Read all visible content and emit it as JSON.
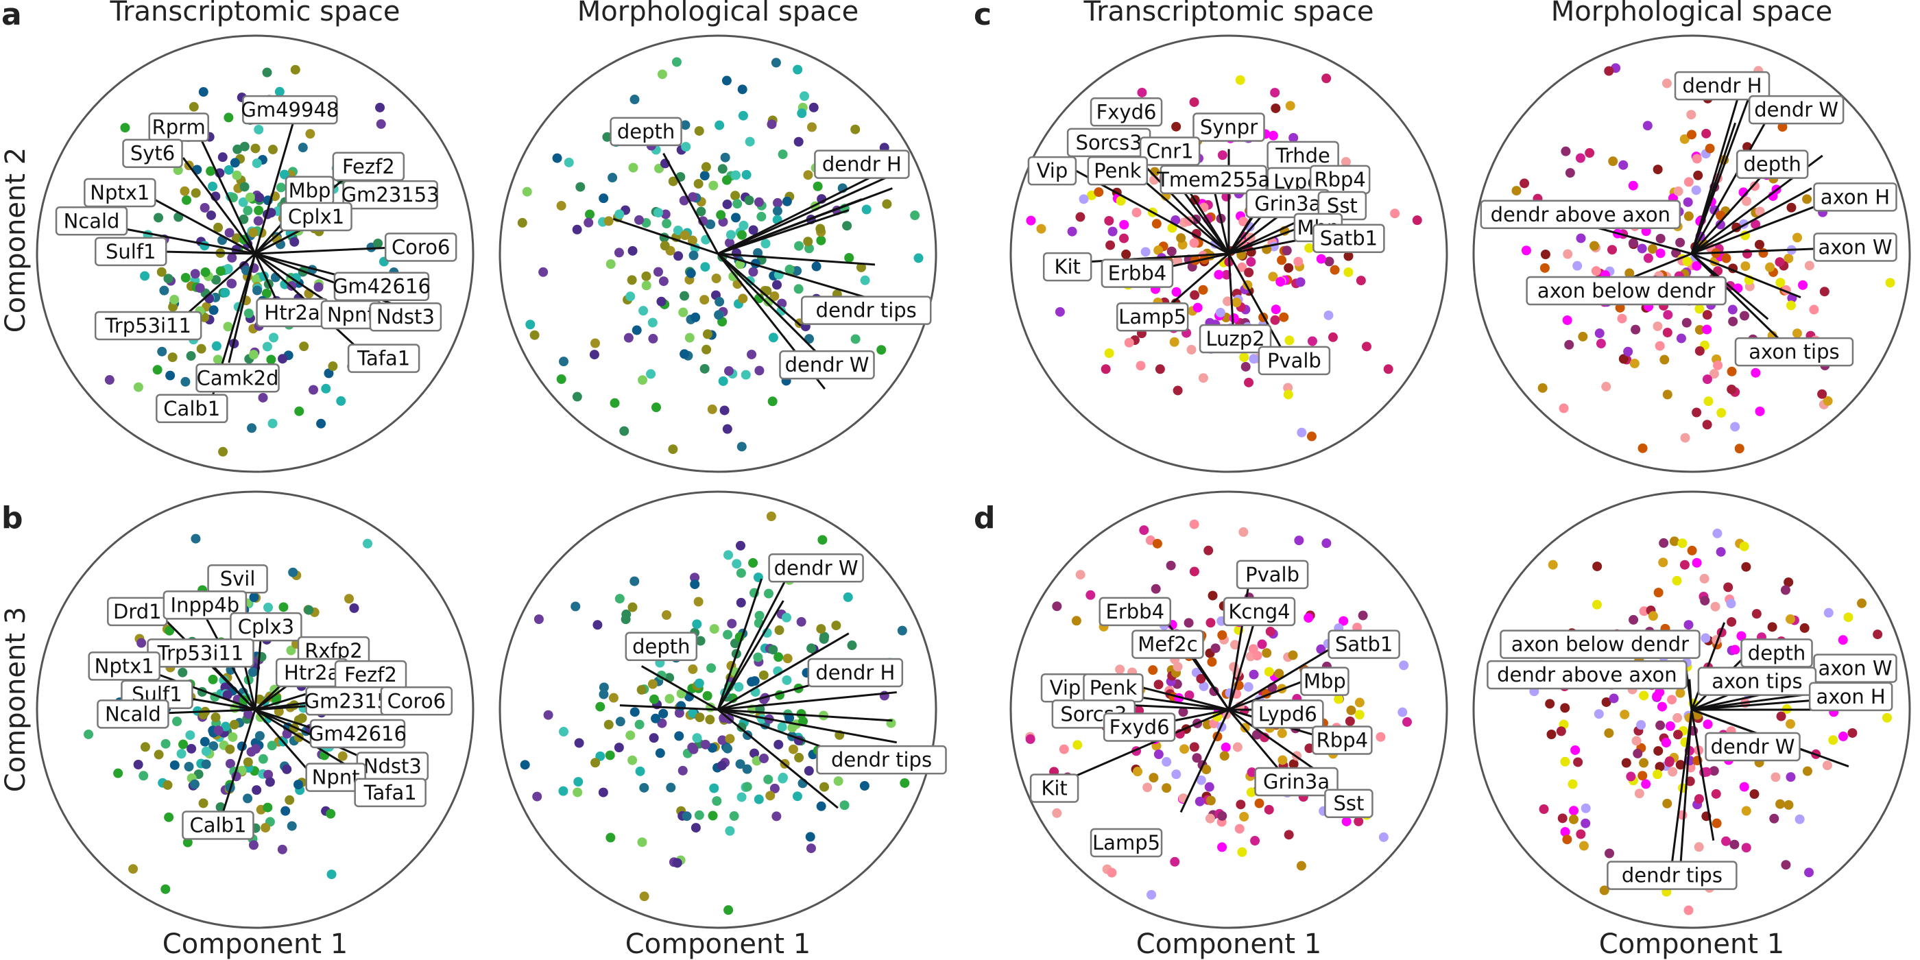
{
  "figure": {
    "panel_letters": [
      "a",
      "b",
      "c",
      "d"
    ],
    "column_titles": [
      "Transcriptomic space",
      "Morphological space",
      "Transcriptomic space",
      "Morphological space"
    ],
    "xlabel": "Component 1",
    "row_ylabels": [
      "Component 2",
      "Component 3"
    ],
    "palettes": {
      "green_blue": [
        "#2e8b57",
        "#20b2aa",
        "#3cb371",
        "#40c4b4",
        "#1e6e8c",
        "#0b5b8a",
        "#4b2d8a",
        "#6a3d9a",
        "#8a8a1a",
        "#a09020",
        "#7fcf5f",
        "#27a22a"
      ],
      "magenta_red": [
        "#c81e6a",
        "#a51f3a",
        "#8b1a1a",
        "#b8860b",
        "#d4a017",
        "#ff00ff",
        "#d02090",
        "#9932cc",
        "#ff8c9a",
        "#f4a0a0",
        "#b0a0ff",
        "#e6e600",
        "#cc5500",
        "#8e2a6e"
      ]
    }
  },
  "chart_data": [
    {
      "type": "scatter",
      "panel": "a",
      "space": "Transcriptomic space",
      "xlabel": "Component 1",
      "ylabel": "Component 2",
      "palette": "green_blue",
      "spread": [
        0.55,
        0.75
      ],
      "seed": 11,
      "loadings": [
        {
          "label": "Gm49948",
          "dx": 0.18,
          "dy": 0.62,
          "lx": 0.16,
          "ly": 0.66
        },
        {
          "label": "Rprm",
          "dx": -0.25,
          "dy": 0.53,
          "lx": -0.35,
          "ly": 0.58
        },
        {
          "label": "Syt6",
          "dx": -0.33,
          "dy": 0.44,
          "lx": -0.47,
          "ly": 0.46
        },
        {
          "label": "Fezf2",
          "dx": 0.44,
          "dy": 0.37,
          "lx": 0.52,
          "ly": 0.4
        },
        {
          "label": "Mbp",
          "dx": 0.25,
          "dy": 0.28,
          "lx": 0.25,
          "ly": 0.29
        },
        {
          "label": "Gm23153",
          "dx": 0.52,
          "dy": 0.27,
          "lx": 0.62,
          "ly": 0.27
        },
        {
          "label": "Nptx1",
          "dx": -0.52,
          "dy": 0.28,
          "lx": -0.62,
          "ly": 0.28
        },
        {
          "label": "Cplx1",
          "dx": 0.27,
          "dy": 0.14,
          "lx": 0.28,
          "ly": 0.17
        },
        {
          "label": "Ncald",
          "dx": -0.63,
          "dy": 0.12,
          "lx": -0.75,
          "ly": 0.15
        },
        {
          "label": "Coro6",
          "dx": 0.67,
          "dy": 0.03,
          "lx": 0.76,
          "ly": 0.03
        },
        {
          "label": "Sulf1",
          "dx": -0.44,
          "dy": 0.01,
          "lx": -0.57,
          "ly": 0.01
        },
        {
          "label": "Gm42616",
          "dx": 0.5,
          "dy": -0.13,
          "lx": 0.58,
          "ly": -0.15
        },
        {
          "label": "Htr2a",
          "dx": 0.11,
          "dy": -0.24,
          "lx": 0.17,
          "ly": -0.27
        },
        {
          "label": "Npnt",
          "dx": 0.39,
          "dy": -0.26,
          "lx": 0.44,
          "ly": -0.28
        },
        {
          "label": "Ndst3",
          "dx": 0.63,
          "dy": -0.23,
          "lx": 0.69,
          "ly": -0.29
        },
        {
          "label": "Trp53i11",
          "dx": -0.34,
          "dy": -0.3,
          "lx": -0.49,
          "ly": -0.33
        },
        {
          "label": "Tafa1",
          "dx": 0.5,
          "dy": -0.46,
          "lx": 0.59,
          "ly": -0.48
        },
        {
          "label": "Camk2d",
          "dx": -0.12,
          "dy": -0.5,
          "lx": -0.08,
          "ly": -0.57
        },
        {
          "label": "Calb1",
          "dx": -0.2,
          "dy": -0.67,
          "lx": -0.29,
          "ly": -0.71
        }
      ]
    },
    {
      "type": "scatter",
      "panel": "a",
      "space": "Morphological space",
      "xlabel": "Component 1",
      "ylabel": "Component 2",
      "palette": "green_blue",
      "spread": [
        0.75,
        0.8
      ],
      "seed": 12,
      "loadings": [
        {
          "label": "depth",
          "dx": -0.25,
          "dy": 0.46,
          "lx": -0.33,
          "ly": 0.56
        },
        {
          "label": "dendr H",
          "dx": 0.84,
          "dy": 0.38,
          "lx": 0.66,
          "ly": 0.41
        },
        {
          "label": "dendr tips",
          "dx": 0.78,
          "dy": -0.23,
          "lx": 0.68,
          "ly": -0.26
        },
        {
          "label": "dendr W",
          "dx": 0.49,
          "dy": -0.62,
          "lx": 0.5,
          "ly": -0.51
        },
        {
          "label": "",
          "dx": 0.8,
          "dy": 0.3
        },
        {
          "label": "",
          "dx": 0.7,
          "dy": 0.35
        },
        {
          "label": "",
          "dx": 0.6,
          "dy": 0.2
        },
        {
          "label": "",
          "dx": 0.72,
          "dy": -0.05
        },
        {
          "label": "",
          "dx": 0.45,
          "dy": -0.45
        },
        {
          "label": "",
          "dx": 0.38,
          "dy": -0.33
        },
        {
          "label": "",
          "dx": -0.48,
          "dy": 0.16
        },
        {
          "label": "",
          "dx": 0.66,
          "dy": 0.25
        }
      ]
    },
    {
      "type": "scatter",
      "panel": "c",
      "space": "Transcriptomic space",
      "xlabel": "Component 1",
      "ylabel": "Component 2",
      "palette": "magenta_red",
      "spread": [
        0.75,
        0.7
      ],
      "seed": 13,
      "loadings": [
        {
          "label": "Fxyd6",
          "dx": -0.4,
          "dy": 0.55,
          "lx": -0.47,
          "ly": 0.65
        },
        {
          "label": "Synpr",
          "dx": 0.0,
          "dy": 0.48,
          "lx": 0.0,
          "ly": 0.58
        },
        {
          "label": "Sorcs3",
          "dx": -0.43,
          "dy": 0.45,
          "lx": -0.55,
          "ly": 0.51
        },
        {
          "label": "Cnr1",
          "dx": -0.26,
          "dy": 0.41,
          "lx": -0.27,
          "ly": 0.47
        },
        {
          "label": "Trhde",
          "dx": 0.26,
          "dy": 0.42,
          "lx": 0.34,
          "ly": 0.45
        },
        {
          "label": "Lypd6",
          "dx": 0.22,
          "dy": 0.34,
          "lx": 0.34,
          "ly": 0.33
        },
        {
          "label": "Rbp4",
          "dx": 0.45,
          "dy": 0.34,
          "lx": 0.51,
          "ly": 0.34
        },
        {
          "label": "Vip",
          "dx": -0.7,
          "dy": 0.38,
          "lx": -0.81,
          "ly": 0.38
        },
        {
          "label": "Penk",
          "dx": -0.43,
          "dy": 0.37,
          "lx": -0.51,
          "ly": 0.38
        },
        {
          "label": "Tmem255a",
          "dx": -0.08,
          "dy": 0.35,
          "lx": -0.07,
          "ly": 0.34
        },
        {
          "label": "Grin3a",
          "dx": 0.2,
          "dy": 0.23,
          "lx": 0.27,
          "ly": 0.23
        },
        {
          "label": "Sst",
          "dx": 0.47,
          "dy": 0.22,
          "lx": 0.52,
          "ly": 0.22
        },
        {
          "label": "Mbp",
          "dx": 0.3,
          "dy": 0.11,
          "lx": 0.41,
          "ly": 0.12
        },
        {
          "label": "Satb1",
          "dx": 0.51,
          "dy": 0.1,
          "lx": 0.55,
          "ly": 0.07
        },
        {
          "label": "Kit",
          "dx": -0.7,
          "dy": -0.04,
          "lx": -0.74,
          "ly": -0.06
        },
        {
          "label": "Erbb4",
          "dx": -0.41,
          "dy": -0.09,
          "lx": -0.42,
          "ly": -0.09
        },
        {
          "label": "Lamp5",
          "dx": -0.31,
          "dy": -0.27,
          "lx": -0.35,
          "ly": -0.29
        },
        {
          "label": "Luzp2",
          "dx": 0.02,
          "dy": -0.34,
          "lx": 0.03,
          "ly": -0.39
        },
        {
          "label": "Pvalb",
          "dx": 0.25,
          "dy": -0.45,
          "lx": 0.3,
          "ly": -0.49
        }
      ]
    },
    {
      "type": "scatter",
      "panel": "c",
      "space": "Morphological space",
      "xlabel": "Component 1",
      "ylabel": "Component 2",
      "palette": "magenta_red",
      "spread": [
        0.8,
        0.8
      ],
      "seed": 14,
      "loadings": [
        {
          "label": "dendr H",
          "dx": 0.24,
          "dy": 0.81,
          "lx": 0.14,
          "ly": 0.77
        },
        {
          "label": "dendr W",
          "dx": 0.37,
          "dy": 0.66,
          "lx": 0.48,
          "ly": 0.66
        },
        {
          "label": "depth",
          "dx": 0.37,
          "dy": 0.41,
          "lx": 0.37,
          "ly": 0.41
        },
        {
          "label": "axon H",
          "dx": 0.68,
          "dy": 0.26,
          "lx": 0.75,
          "ly": 0.26
        },
        {
          "label": "dendr above axon",
          "dx": -0.51,
          "dy": 0.14,
          "lx": -0.51,
          "ly": 0.18
        },
        {
          "label": "axon W",
          "dx": 0.75,
          "dy": 0.03,
          "lx": 0.75,
          "ly": 0.03
        },
        {
          "label": "axon below dendr",
          "dx": -0.3,
          "dy": -0.12,
          "lx": -0.3,
          "ly": -0.17
        },
        {
          "label": "axon tips",
          "dx": 0.42,
          "dy": -0.41,
          "lx": 0.47,
          "ly": -0.45
        },
        {
          "label": "",
          "dx": 0.26,
          "dy": 0.71
        },
        {
          "label": "",
          "dx": 0.6,
          "dy": 0.45
        },
        {
          "label": "",
          "dx": 0.55,
          "dy": 0.3
        },
        {
          "label": "",
          "dx": 0.5,
          "dy": -0.2
        },
        {
          "label": "",
          "dx": 0.35,
          "dy": -0.3
        },
        {
          "label": "",
          "dx": 0.2,
          "dy": 0.6
        }
      ]
    },
    {
      "type": "scatter",
      "panel": "b",
      "space": "Transcriptomic space",
      "xlabel": "Component 1",
      "ylabel": "Component 3",
      "palette": "green_blue",
      "spread": [
        0.55,
        0.7
      ],
      "seed": 21,
      "loadings": [
        {
          "label": "Svil",
          "dx": -0.12,
          "dy": 0.52,
          "lx": -0.08,
          "ly": 0.6
        },
        {
          "label": "Drd1",
          "dx": -0.43,
          "dy": 0.43,
          "lx": -0.54,
          "ly": 0.45
        },
        {
          "label": "Inpp4b",
          "dx": -0.24,
          "dy": 0.45,
          "lx": -0.23,
          "ly": 0.48
        },
        {
          "label": "Cplx3",
          "dx": 0.03,
          "dy": 0.38,
          "lx": 0.05,
          "ly": 0.38
        },
        {
          "label": "Trp53i11",
          "dx": -0.27,
          "dy": 0.28,
          "lx": -0.25,
          "ly": 0.26
        },
        {
          "label": "Rxfp2",
          "dx": 0.36,
          "dy": 0.27,
          "lx": 0.36,
          "ly": 0.27
        },
        {
          "label": "Nptx1",
          "dx": -0.55,
          "dy": 0.2,
          "lx": -0.6,
          "ly": 0.2
        },
        {
          "label": "Htr2a",
          "dx": 0.18,
          "dy": 0.17,
          "lx": 0.26,
          "ly": 0.17
        },
        {
          "label": "Fezf2",
          "dx": 0.52,
          "dy": 0.16,
          "lx": 0.53,
          "ly": 0.16
        },
        {
          "label": "Sulf1",
          "dx": -0.41,
          "dy": 0.07,
          "lx": -0.45,
          "ly": 0.07
        },
        {
          "label": "Gm23153",
          "dx": 0.3,
          "dy": 0.04,
          "lx": 0.45,
          "ly": 0.04
        },
        {
          "label": "Coro6",
          "dx": 0.72,
          "dy": 0.05,
          "lx": 0.74,
          "ly": 0.04
        },
        {
          "label": "Ncald",
          "dx": -0.54,
          "dy": -0.02,
          "lx": -0.56,
          "ly": -0.02
        },
        {
          "label": "Gm42616",
          "dx": 0.34,
          "dy": -0.11,
          "lx": 0.47,
          "ly": -0.11
        },
        {
          "label": "Ndst3",
          "dx": 0.56,
          "dy": -0.25,
          "lx": 0.63,
          "ly": -0.26
        },
        {
          "label": "Npnt",
          "dx": 0.28,
          "dy": -0.32,
          "lx": 0.37,
          "ly": -0.31
        },
        {
          "label": "Tafa1",
          "dx": 0.56,
          "dy": -0.34,
          "lx": 0.62,
          "ly": -0.38
        },
        {
          "label": "Calb1",
          "dx": -0.15,
          "dy": -0.48,
          "lx": -0.17,
          "ly": -0.53
        }
      ]
    },
    {
      "type": "scatter",
      "panel": "b",
      "space": "Morphological space",
      "xlabel": "Component 1",
      "ylabel": "Component 3",
      "palette": "green_blue",
      "spread": [
        0.75,
        0.7
      ],
      "seed": 22,
      "loadings": [
        {
          "label": "dendr W",
          "dx": 0.37,
          "dy": 0.71,
          "lx": 0.45,
          "ly": 0.65
        },
        {
          "label": "depth",
          "dx": -0.35,
          "dy": 0.2,
          "lx": -0.26,
          "ly": 0.29
        },
        {
          "label": "dendr H",
          "dx": 0.82,
          "dy": 0.08,
          "lx": 0.63,
          "ly": 0.17
        },
        {
          "label": "dendr tips",
          "dx": 0.82,
          "dy": -0.15,
          "lx": 0.75,
          "ly": -0.23
        },
        {
          "label": "",
          "dx": 0.75,
          "dy": 0.2
        },
        {
          "label": "",
          "dx": 0.8,
          "dy": -0.05
        },
        {
          "label": "",
          "dx": 0.7,
          "dy": -0.25
        },
        {
          "label": "",
          "dx": 0.55,
          "dy": -0.45
        },
        {
          "label": "",
          "dx": 0.3,
          "dy": 0.5
        },
        {
          "label": "",
          "dx": 0.2,
          "dy": 0.6
        },
        {
          "label": "",
          "dx": 0.6,
          "dy": 0.35
        },
        {
          "label": "",
          "dx": -0.45,
          "dy": 0.02
        }
      ]
    },
    {
      "type": "scatter",
      "panel": "d",
      "space": "Transcriptomic space",
      "xlabel": "Component 1",
      "ylabel": "Component 3",
      "palette": "magenta_red",
      "spread": [
        0.75,
        0.75
      ],
      "seed": 23,
      "loadings": [
        {
          "label": "Pvalb",
          "dx": 0.1,
          "dy": 0.63,
          "lx": 0.2,
          "ly": 0.62
        },
        {
          "label": "Erbb4",
          "dx": -0.31,
          "dy": 0.44,
          "lx": -0.43,
          "ly": 0.45
        },
        {
          "label": "Kcng4",
          "dx": 0.13,
          "dy": 0.45,
          "lx": 0.14,
          "ly": 0.45
        },
        {
          "label": "Satb1",
          "dx": 0.5,
          "dy": 0.3,
          "lx": 0.62,
          "ly": 0.3
        },
        {
          "label": "Mef2c",
          "dx": -0.2,
          "dy": 0.3,
          "lx": -0.28,
          "ly": 0.3
        },
        {
          "label": "Mbp",
          "dx": 0.34,
          "dy": 0.13,
          "lx": 0.44,
          "ly": 0.13
        },
        {
          "label": "Vip",
          "dx": -0.72,
          "dy": 0.1,
          "lx": -0.75,
          "ly": 0.1
        },
        {
          "label": "Penk",
          "dx": -0.39,
          "dy": 0.1,
          "lx": -0.53,
          "ly": 0.1
        },
        {
          "label": "Sorcs3",
          "dx": -0.44,
          "dy": 0.02,
          "lx": -0.62,
          "ly": -0.02
        },
        {
          "label": "Lypd6",
          "dx": 0.23,
          "dy": 0.0,
          "lx": 0.27,
          "ly": -0.02
        },
        {
          "label": "Fxyd6",
          "dx": -0.25,
          "dy": -0.05,
          "lx": -0.41,
          "ly": -0.08
        },
        {
          "label": "Rbp4",
          "dx": 0.44,
          "dy": -0.13,
          "lx": 0.52,
          "ly": -0.14
        },
        {
          "label": "Grin3a",
          "dx": 0.26,
          "dy": -0.31,
          "lx": 0.31,
          "ly": -0.33
        },
        {
          "label": "Sst",
          "dx": 0.49,
          "dy": -0.34,
          "lx": 0.55,
          "ly": -0.43
        },
        {
          "label": "Kit",
          "dx": -0.74,
          "dy": -0.32,
          "lx": -0.8,
          "ly": -0.36
        },
        {
          "label": "Lamp5",
          "dx": -0.22,
          "dy": -0.47,
          "lx": -0.47,
          "ly": -0.61
        }
      ]
    },
    {
      "type": "scatter",
      "panel": "d",
      "space": "Morphological space",
      "xlabel": "Component 1",
      "ylabel": "Component 3",
      "palette": "magenta_red",
      "spread": [
        0.8,
        0.8
      ],
      "seed": 24,
      "loadings": [
        {
          "label": "axon below dendr",
          "dx": -0.03,
          "dy": 0.22,
          "lx": -0.42,
          "ly": 0.3
        },
        {
          "label": "depth",
          "dx": 0.25,
          "dy": 0.25,
          "lx": 0.39,
          "ly": 0.26
        },
        {
          "label": "axon W",
          "dx": 0.78,
          "dy": 0.17,
          "lx": 0.75,
          "ly": 0.19
        },
        {
          "label": "dendr above axon",
          "dx": -0.01,
          "dy": 0.14,
          "lx": -0.48,
          "ly": 0.16
        },
        {
          "label": "axon tips",
          "dx": 0.27,
          "dy": 0.11,
          "lx": 0.3,
          "ly": 0.13
        },
        {
          "label": "axon H",
          "dx": 0.78,
          "dy": 0.06,
          "lx": 0.73,
          "ly": 0.06
        },
        {
          "label": "dendr W",
          "dx": 0.72,
          "dy": -0.26,
          "lx": 0.28,
          "ly": -0.17
        },
        {
          "label": "dendr tips",
          "dx": -0.1,
          "dy": -0.78,
          "lx": -0.09,
          "ly": -0.76
        },
        {
          "label": "",
          "dx": 0.75,
          "dy": 0.1
        },
        {
          "label": "",
          "dx": 0.6,
          "dy": 0.0
        },
        {
          "label": "",
          "dx": 0.55,
          "dy": -0.2
        },
        {
          "label": "",
          "dx": -0.05,
          "dy": -0.7
        },
        {
          "label": "",
          "dx": 0.1,
          "dy": -0.6
        },
        {
          "label": "",
          "dx": 0.15,
          "dy": 0.4
        }
      ]
    }
  ]
}
